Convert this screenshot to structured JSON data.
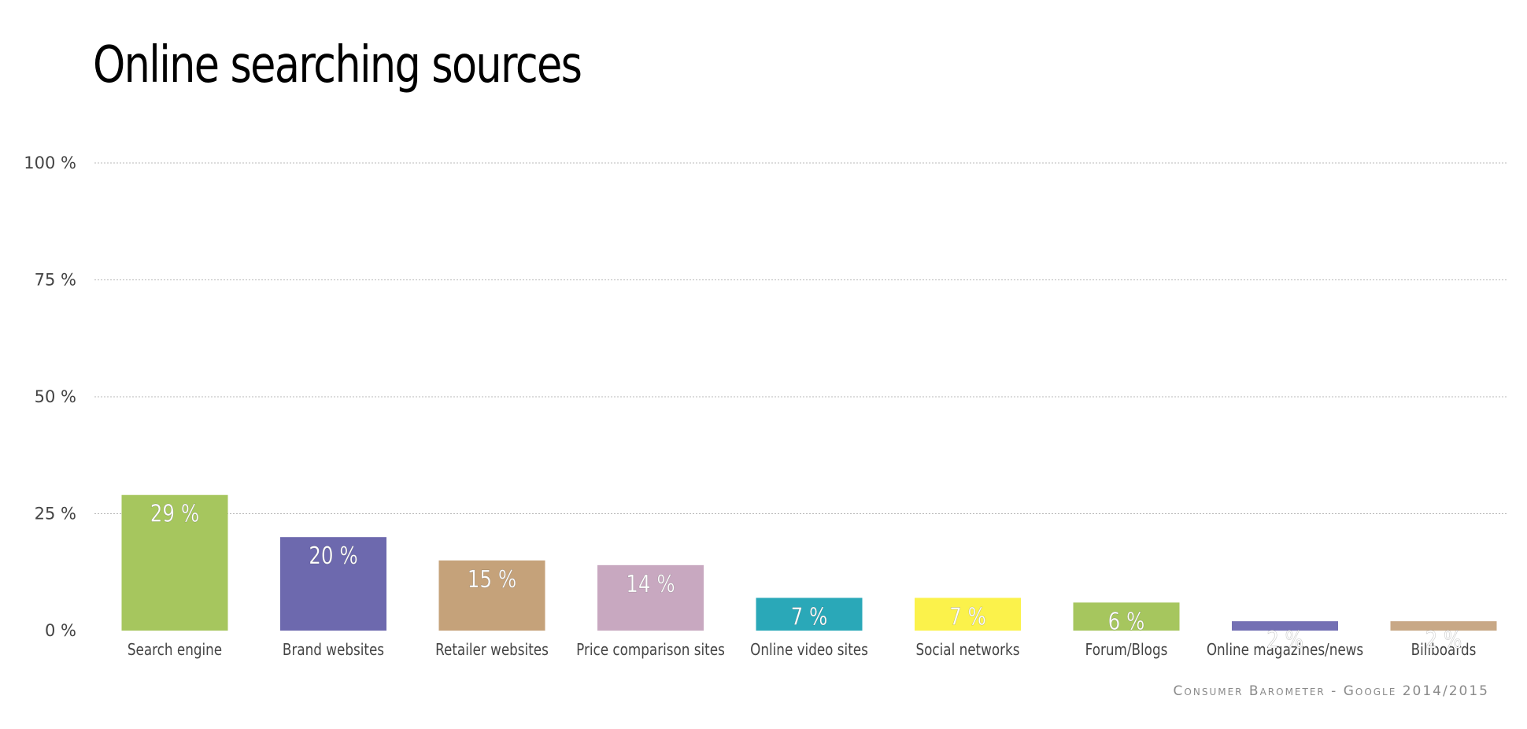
{
  "chart_data": {
    "type": "bar",
    "title": "Online searching sources",
    "categories": [
      "Search engine",
      "Brand websites",
      "Retailer websites",
      "Price comparison sites",
      "Online video sites",
      "Social networks",
      "Forum/Blogs",
      "Online magazines/news",
      "Billboards"
    ],
    "values": [
      29,
      20,
      15,
      14,
      7,
      7,
      6,
      2,
      2
    ],
    "value_labels": [
      "29 %",
      "20 %",
      "15 %",
      "14 %",
      "7 %",
      "7 %",
      "6 %",
      "2 %",
      "2 %"
    ],
    "colors": [
      "#a6c65e",
      "#6d69ae",
      "#c5a27a",
      "#c8a8c0",
      "#2aa8b8",
      "#fbf24b",
      "#a6c65e",
      "#7470b4",
      "#c8a886"
    ],
    "yticks": [
      0,
      25,
      50,
      75,
      100
    ],
    "ytick_labels": [
      "0 %",
      "25 %",
      "50 %",
      "75 %",
      "100 %"
    ],
    "ylim": [
      0,
      100
    ],
    "xlabel": "",
    "ylabel": "",
    "grid": true,
    "legend": "none"
  },
  "source": "Consumer Barometer - Google 2014/2015"
}
